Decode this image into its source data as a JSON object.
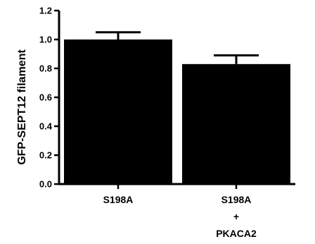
{
  "chart_data": {
    "type": "bar",
    "title": "",
    "xlabel": "",
    "ylabel": "GFP-SEPT12 filament",
    "ylim": [
      0,
      1.2
    ],
    "yticks": [
      "0.0",
      "0.2",
      "0.4",
      "0.6",
      "0.8",
      "1.0",
      "1.2"
    ],
    "categories": [
      [
        "S198A"
      ],
      [
        "S198A",
        "+",
        "PKACA2"
      ]
    ],
    "values": [
      1.0,
      0.83
    ],
    "errors": [
      0.05,
      0.06
    ],
    "bar_color": "#000000",
    "grid": false,
    "legend": "none"
  }
}
